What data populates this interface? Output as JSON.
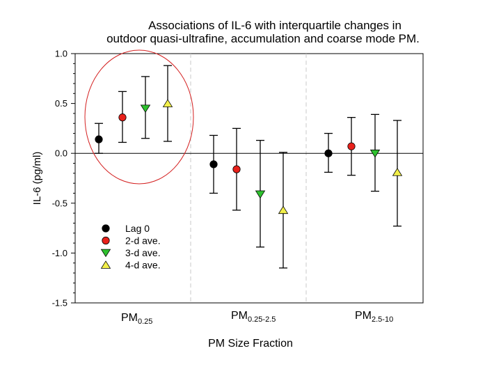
{
  "chart_data": {
    "type": "scatter",
    "subtype": "error-bar point estimates",
    "title": "Associations of IL-6 with interquartile changes in",
    "subtitle": "outdoor quasi-ultrafine, accumulation and coarse mode PM.",
    "xlabel": "PM Size Fraction",
    "ylabel": "IL-6 (pg/ml)",
    "ylim": [
      -1.5,
      1.0
    ],
    "yticks": [
      "1.0",
      "0.5",
      "0.0",
      "-0.5",
      "-1.0",
      "-1.5"
    ],
    "yticks_values": [
      1.0,
      0.5,
      0.0,
      -0.5,
      -1.0,
      -1.5
    ],
    "categories": [
      {
        "base": "PM",
        "sub": "0.25"
      },
      {
        "base": "PM",
        "sub": "0.25-2.5"
      },
      {
        "base": "PM",
        "sub": "2.5-10"
      }
    ],
    "grid": false,
    "zero_line": true,
    "legend_position": "lower-left",
    "annotation": "red ellipse highlighting PM0.25 group",
    "series": [
      {
        "name": "Lag 0",
        "marker": "circle",
        "color": "#000000",
        "values": [
          0.14,
          -0.11,
          0.0
        ],
        "lower": [
          0.0,
          -0.4,
          -0.19
        ],
        "upper": [
          0.3,
          0.18,
          0.2
        ]
      },
      {
        "name": "2-d ave.",
        "marker": "circle",
        "color": "#e8211b",
        "values": [
          0.36,
          -0.16,
          0.07
        ],
        "lower": [
          0.11,
          -0.57,
          -0.22
        ],
        "upper": [
          0.62,
          0.25,
          0.36
        ]
      },
      {
        "name": "3-d ave.",
        "marker": "triangle-down",
        "color": "#2ec12e",
        "values": [
          0.45,
          -0.41,
          0.0
        ],
        "lower": [
          0.15,
          -0.94,
          -0.38
        ],
        "upper": [
          0.77,
          0.13,
          0.39
        ]
      },
      {
        "name": "4-d ave.",
        "marker": "triangle-up",
        "color": "#f2ef4a",
        "values": [
          0.5,
          -0.57,
          -0.19
        ],
        "lower": [
          0.12,
          -1.15,
          -0.73
        ],
        "upper": [
          0.88,
          0.01,
          0.33
        ]
      }
    ]
  }
}
